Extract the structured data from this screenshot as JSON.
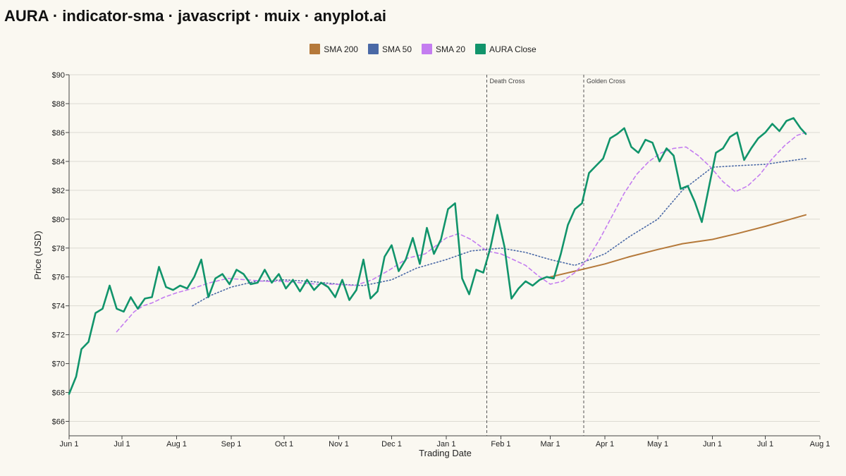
{
  "header": {
    "title": "AURA · indicator-sma · javascript · muix · anyplot.ai"
  },
  "chart_data": {
    "type": "line",
    "title": "AURA · indicator-sma · javascript · muix · anyplot.ai",
    "xlabel": "Trading Date",
    "ylabel": "Price (USD)",
    "ylim": [
      65,
      90
    ],
    "yticks": [
      66,
      68,
      70,
      72,
      74,
      76,
      78,
      80,
      82,
      84,
      86,
      88,
      90
    ],
    "ytick_labels": [
      "$66",
      "$68",
      "$70",
      "$72",
      "$74",
      "$76",
      "$78",
      "$80",
      "$82",
      "$84",
      "$86",
      "$88",
      "$90"
    ],
    "xlim": [
      "2024-06-01",
      "2025-08-01"
    ],
    "xticks": [
      "2024-06-01",
      "2024-07-01",
      "2024-08-01",
      "2024-09-01",
      "2024-10-01",
      "2024-11-01",
      "2024-12-01",
      "2025-01-01",
      "2025-02-01",
      "2025-03-01",
      "2025-04-01",
      "2025-05-01",
      "2025-06-01",
      "2025-07-01",
      "2025-08-01"
    ],
    "xtick_labels": [
      "Jun 1",
      "Jul 1",
      "Aug 1",
      "Sep 1",
      "Oct 1",
      "Nov 1",
      "Dec 1",
      "Jan 1",
      "Feb 1",
      "Mar 1",
      "Apr 1",
      "May 1",
      "Jun 1",
      "Jul 1",
      "Aug 1"
    ],
    "grid": "horizontal",
    "legend": "top-center",
    "legend_entries": [
      {
        "name": "SMA 200",
        "color": "#b5793a"
      },
      {
        "name": "SMA 50",
        "color": "#4a69a6"
      },
      {
        "name": "SMA 20",
        "color": "#c47df0"
      },
      {
        "name": "AURA Close",
        "color": "#11946b"
      }
    ],
    "annotations": [
      {
        "label": "Death Cross",
        "x": "2025-01-24"
      },
      {
        "label": "Golden Cross",
        "x": "2025-03-20"
      }
    ],
    "series": [
      {
        "name": "AURA Close",
        "color": "#11946b",
        "style": "solid",
        "x": [
          "2024-06-01",
          "2024-06-05",
          "2024-06-08",
          "2024-06-12",
          "2024-06-16",
          "2024-06-20",
          "2024-06-24",
          "2024-06-28",
          "2024-07-02",
          "2024-07-06",
          "2024-07-10",
          "2024-07-14",
          "2024-07-18",
          "2024-07-22",
          "2024-07-26",
          "2024-07-30",
          "2024-08-03",
          "2024-08-07",
          "2024-08-11",
          "2024-08-15",
          "2024-08-19",
          "2024-08-23",
          "2024-08-27",
          "2024-08-31",
          "2024-09-04",
          "2024-09-08",
          "2024-09-12",
          "2024-09-16",
          "2024-09-20",
          "2024-09-24",
          "2024-09-28",
          "2024-10-02",
          "2024-10-06",
          "2024-10-10",
          "2024-10-14",
          "2024-10-18",
          "2024-10-22",
          "2024-10-26",
          "2024-10-30",
          "2024-11-03",
          "2024-11-07",
          "2024-11-11",
          "2024-11-15",
          "2024-11-19",
          "2024-11-23",
          "2024-11-27",
          "2024-12-01",
          "2024-12-05",
          "2024-12-09",
          "2024-12-13",
          "2024-12-17",
          "2024-12-21",
          "2024-12-25",
          "2024-12-29",
          "2025-01-02",
          "2025-01-06",
          "2025-01-10",
          "2025-01-14",
          "2025-01-18",
          "2025-01-22",
          "2025-01-26",
          "2025-01-30",
          "2025-02-03",
          "2025-02-07",
          "2025-02-11",
          "2025-02-15",
          "2025-02-19",
          "2025-02-23",
          "2025-02-27",
          "2025-03-03",
          "2025-03-07",
          "2025-03-11",
          "2025-03-15",
          "2025-03-19",
          "2025-03-23",
          "2025-03-27",
          "2025-03-31",
          "2025-04-04",
          "2025-04-08",
          "2025-04-12",
          "2025-04-16",
          "2025-04-20",
          "2025-04-24",
          "2025-04-28",
          "2025-05-02",
          "2025-05-06",
          "2025-05-10",
          "2025-05-14",
          "2025-05-18",
          "2025-05-22",
          "2025-05-26",
          "2025-05-30",
          "2025-06-03",
          "2025-06-07",
          "2025-06-11",
          "2025-06-15",
          "2025-06-19",
          "2025-06-23",
          "2025-06-27",
          "2025-07-01",
          "2025-07-05",
          "2025-07-09",
          "2025-07-13",
          "2025-07-17",
          "2025-07-21",
          "2025-07-24"
        ],
        "y": [
          67.9,
          69.1,
          71.0,
          71.5,
          73.5,
          73.8,
          75.4,
          73.8,
          73.6,
          74.6,
          73.8,
          74.5,
          74.6,
          76.7,
          75.3,
          75.1,
          75.4,
          75.2,
          76.0,
          77.2,
          74.6,
          75.9,
          76.2,
          75.5,
          76.5,
          76.2,
          75.5,
          75.6,
          76.5,
          75.6,
          76.2,
          75.2,
          75.8,
          75.0,
          75.8,
          75.1,
          75.6,
          75.3,
          74.6,
          75.8,
          74.4,
          75.1,
          77.2,
          74.5,
          75.0,
          77.4,
          78.2,
          76.4,
          77.2,
          78.7,
          76.9,
          79.4,
          77.6,
          78.6,
          80.7,
          81.1,
          75.9,
          74.8,
          76.5,
          76.3,
          78.0,
          80.3,
          78.1,
          74.5,
          75.2,
          75.7,
          75.4,
          75.8,
          76.0,
          75.9,
          77.6,
          79.6,
          80.7,
          81.1,
          83.2,
          83.7,
          84.2,
          85.6,
          85.9,
          86.3,
          85.0,
          84.6,
          85.5,
          85.3,
          84.0,
          84.9,
          84.4,
          82.1,
          82.3,
          81.2,
          79.8,
          82.2,
          84.6,
          84.9,
          85.7,
          86.0,
          84.1,
          84.9,
          85.6,
          86.0,
          86.6,
          86.1,
          86.8,
          87.0,
          86.3,
          85.9
        ]
      },
      {
        "name": "SMA 20",
        "color": "#c47df0",
        "style": "dashed",
        "x": [
          "2024-06-28",
          "2024-07-03",
          "2024-07-08",
          "2024-07-13",
          "2024-07-18",
          "2024-07-25",
          "2024-08-01",
          "2024-08-10",
          "2024-08-20",
          "2024-08-30",
          "2024-09-10",
          "2024-09-20",
          "2024-10-01",
          "2024-10-10",
          "2024-10-20",
          "2024-10-30",
          "2024-11-10",
          "2024-11-20",
          "2024-11-30",
          "2024-12-10",
          "2024-12-20",
          "2025-01-01",
          "2025-01-08",
          "2025-01-15",
          "2025-01-24",
          "2025-02-01",
          "2025-02-08",
          "2025-02-15",
          "2025-02-22",
          "2025-03-01",
          "2025-03-08",
          "2025-03-15",
          "2025-03-22",
          "2025-03-29",
          "2025-04-05",
          "2025-04-12",
          "2025-04-19",
          "2025-04-26",
          "2025-05-03",
          "2025-05-10",
          "2025-05-17",
          "2025-05-24",
          "2025-05-31",
          "2025-06-07",
          "2025-06-14",
          "2025-06-21",
          "2025-06-28",
          "2025-07-05",
          "2025-07-12",
          "2025-07-19",
          "2025-07-24"
        ],
        "y": [
          72.2,
          72.9,
          73.6,
          74.0,
          74.2,
          74.6,
          74.9,
          75.2,
          75.6,
          75.9,
          75.8,
          75.7,
          75.7,
          75.6,
          75.5,
          75.5,
          75.4,
          75.8,
          76.5,
          77.3,
          77.6,
          78.7,
          79.0,
          78.6,
          77.8,
          77.6,
          77.2,
          76.8,
          76.1,
          75.5,
          75.7,
          76.3,
          77.2,
          78.6,
          80.2,
          81.8,
          83.1,
          84.0,
          84.6,
          84.9,
          85.0,
          84.4,
          83.6,
          82.6,
          81.9,
          82.3,
          83.1,
          84.2,
          85.1,
          85.8,
          86.0
        ]
      },
      {
        "name": "SMA 50",
        "color": "#4a69a6",
        "style": "dotted",
        "x": [
          "2024-08-10",
          "2024-08-20",
          "2024-09-01",
          "2024-09-15",
          "2024-10-01",
          "2024-10-15",
          "2024-11-01",
          "2024-11-15",
          "2024-12-01",
          "2024-12-15",
          "2025-01-01",
          "2025-01-15",
          "2025-02-01",
          "2025-02-15",
          "2025-03-01",
          "2025-03-15",
          "2025-04-01",
          "2025-04-15",
          "2025-05-01",
          "2025-05-15",
          "2025-06-01",
          "2025-06-15",
          "2025-07-01",
          "2025-07-24"
        ],
        "y": [
          74.0,
          74.7,
          75.3,
          75.7,
          75.8,
          75.7,
          75.5,
          75.4,
          75.8,
          76.6,
          77.2,
          77.8,
          78.0,
          77.7,
          77.2,
          76.8,
          77.6,
          78.8,
          80.0,
          82.0,
          83.6,
          83.7,
          83.8,
          84.2
        ]
      },
      {
        "name": "SMA 200",
        "color": "#b5793a",
        "style": "solid",
        "x": [
          "2025-03-01",
          "2025-03-15",
          "2025-04-01",
          "2025-04-15",
          "2025-05-01",
          "2025-05-15",
          "2025-06-01",
          "2025-06-15",
          "2025-07-01",
          "2025-07-24"
        ],
        "y": [
          76.0,
          76.4,
          76.9,
          77.4,
          77.9,
          78.3,
          78.6,
          79.0,
          79.5,
          80.3
        ]
      }
    ]
  }
}
